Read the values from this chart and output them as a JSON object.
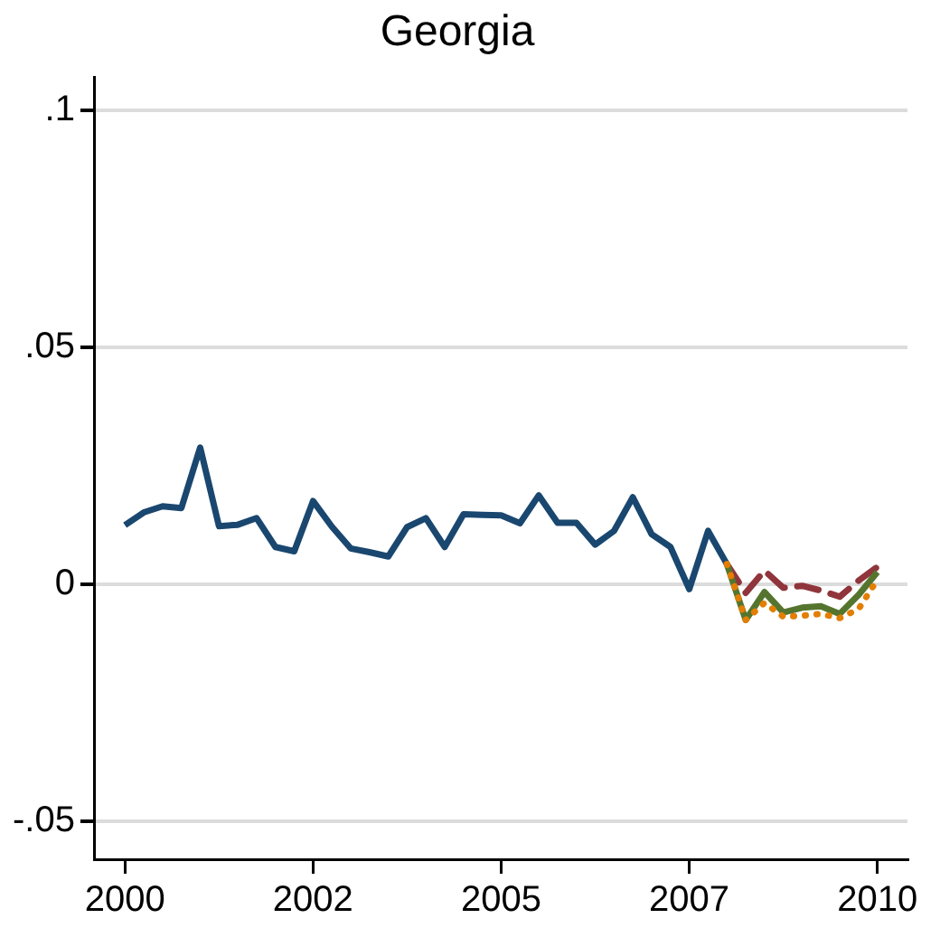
{
  "chart_data": {
    "type": "line",
    "title": "Georgia",
    "x": [
      2000,
      2000.25,
      2000.5,
      2000.75,
      2001,
      2001.25,
      2001.5,
      2001.75,
      2002,
      2002.25,
      2002.5,
      2002.75,
      2003,
      2003.25,
      2003.5,
      2003.75,
      2004,
      2004.25,
      2004.5,
      2004.75,
      2005,
      2005.25,
      2005.5,
      2005.75,
      2006,
      2006.25,
      2006.5,
      2006.75,
      2007,
      2007.25,
      2007.5,
      2007.75,
      2008,
      2008.25,
      2008.5,
      2008.75,
      2009,
      2009.25,
      2009.5,
      2009.75,
      2010
    ],
    "series": [
      {
        "color": "#1a476f",
        "line_style": "solid",
        "values": [
          0.0125,
          0.0152,
          0.0165,
          0.0161,
          0.0289,
          0.0123,
          0.0126,
          0.014,
          0.0079,
          0.007,
          0.0176,
          0.0122,
          0.0076,
          0.0068,
          0.0059,
          0.0121,
          0.014,
          0.0079,
          0.0148,
          0.0147,
          0.0146,
          0.0129,
          0.0188,
          0.013,
          0.013,
          0.0084,
          0.0113,
          0.0184,
          0.0106,
          0.0079,
          -0.001,
          0.0113,
          0.0043,
          null,
          null,
          null,
          null,
          null,
          null,
          null,
          null
        ]
      },
      {
        "color": "#90353b",
        "line_style": "dashed",
        "values": [
          null,
          null,
          null,
          null,
          null,
          null,
          null,
          null,
          null,
          null,
          null,
          null,
          null,
          null,
          null,
          null,
          null,
          null,
          null,
          null,
          null,
          null,
          null,
          null,
          null,
          null,
          null,
          null,
          null,
          null,
          null,
          null,
          0.0043,
          -0.0018,
          0.0029,
          -0.0007,
          -0.0003,
          -0.0013,
          -0.0026,
          0.0008,
          0.0037
        ]
      },
      {
        "color": "#55752f",
        "line_style": "solid",
        "values": [
          null,
          null,
          null,
          null,
          null,
          null,
          null,
          null,
          null,
          null,
          null,
          null,
          null,
          null,
          null,
          null,
          null,
          null,
          null,
          null,
          null,
          null,
          null,
          null,
          null,
          null,
          null,
          null,
          null,
          null,
          null,
          null,
          0.0043,
          -0.0075,
          -0.0016,
          -0.0059,
          -0.0049,
          -0.0046,
          -0.0062,
          -0.0022,
          0.0026
        ]
      },
      {
        "color": "#e37e00",
        "line_style": "dotted",
        "values": [
          null,
          null,
          null,
          null,
          null,
          null,
          null,
          null,
          null,
          null,
          null,
          null,
          null,
          null,
          null,
          null,
          null,
          null,
          null,
          null,
          null,
          null,
          null,
          null,
          null,
          null,
          null,
          null,
          null,
          null,
          null,
          null,
          0.0043,
          -0.0075,
          -0.0039,
          -0.0068,
          -0.0066,
          -0.0062,
          -0.0071,
          -0.0052,
          0.001
        ]
      }
    ],
    "xlim": [
      1999.6,
      2010.4
    ],
    "xticks": [
      2000,
      {
        "value": 2002.5,
        "label": "2002"
      },
      2005,
      {
        "value": 2007.5,
        "label": "2007"
      },
      2010
    ],
    "ylim": [
      -0.058,
      0.107
    ],
    "yticks": [
      {
        "value": -0.05,
        "label": "-.05"
      },
      0,
      {
        "value": 0.05,
        "label": ".05"
      },
      {
        "value": 0.1,
        "label": ".1"
      }
    ],
    "grid": "y",
    "legend": false,
    "marker": "none"
  }
}
